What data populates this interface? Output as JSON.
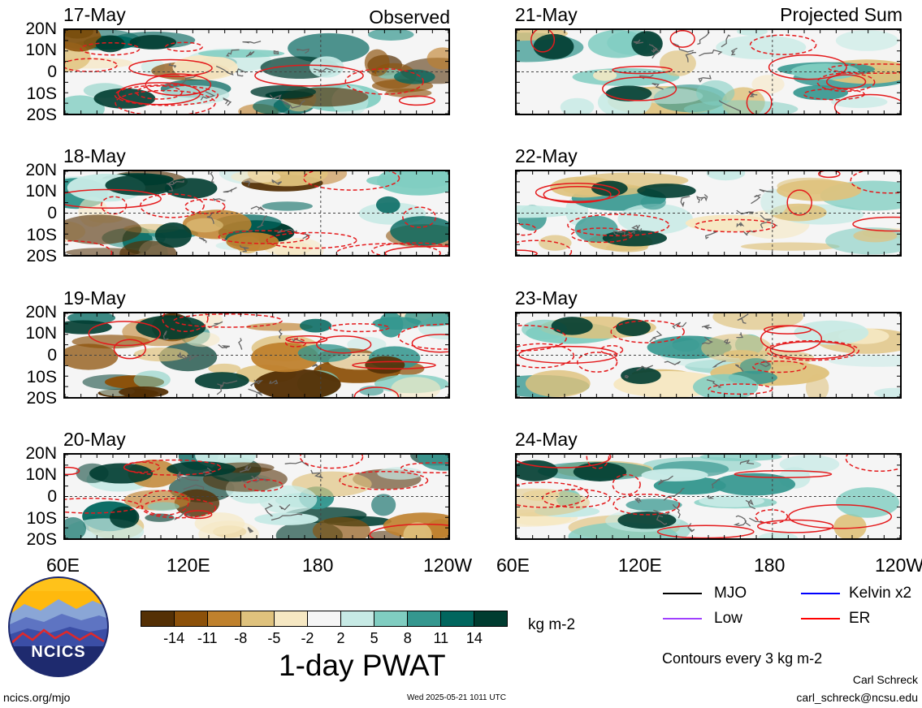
{
  "panels": [
    {
      "date": "17-May",
      "title": "Observed"
    },
    {
      "date": "21-May",
      "title": "Projected Sum"
    },
    {
      "date": "18-May",
      "title": ""
    },
    {
      "date": "22-May",
      "title": ""
    },
    {
      "date": "19-May",
      "title": ""
    },
    {
      "date": "23-May",
      "title": ""
    },
    {
      "date": "20-May",
      "title": ""
    },
    {
      "date": "24-May",
      "title": ""
    }
  ],
  "lat_labels": [
    "20N",
    "10N",
    "0",
    "10S",
    "20S"
  ],
  "lon_labels": [
    "60E",
    "120E",
    "180",
    "120W"
  ],
  "colorbar": {
    "title": "1-day PWAT",
    "units": "kg m-2",
    "tick_labels": [
      "-14",
      "-11",
      "-8",
      "-5",
      "-2",
      "2",
      "5",
      "8",
      "11",
      "14"
    ],
    "colors": [
      "#543005",
      "#8c510a",
      "#bf812d",
      "#dfc27d",
      "#f6e8c3",
      "#f5f5f5",
      "#c7eae5",
      "#80cdc1",
      "#35978f",
      "#01665e",
      "#003c30"
    ]
  },
  "legend": {
    "items": [
      {
        "label": "MJO",
        "color": "#000000"
      },
      {
        "label": "Kelvin x2",
        "color": "#0000ff"
      },
      {
        "label": "Low",
        "color": "#a040ff"
      },
      {
        "label": "ER",
        "color": "#ff0000"
      }
    ],
    "contour_note": "Contours every 3 kg m-2"
  },
  "logo": {
    "text": "NCICS"
  },
  "footer": {
    "url": "ncics.org/mjo",
    "timestamp": "Wed 2025-05-21 1011 UTC",
    "author": "Carl Schreck",
    "email": "carl_schreck@ncsu.edu"
  },
  "chart_data": {
    "type": "heatmap",
    "variable": "1-day PWAT",
    "units": "kg m-2",
    "x_ticks": [
      "60E",
      "120E",
      "180",
      "120W"
    ],
    "y_ticks": [
      "20N",
      "10N",
      "0",
      "10S",
      "20S"
    ],
    "levels": [
      -14,
      -11,
      -8,
      -5,
      -2,
      2,
      5,
      8,
      11,
      14
    ],
    "contour_interval": 3,
    "observed_dates": [
      "17-May",
      "18-May",
      "19-May",
      "20-May"
    ],
    "projected_dates": [
      "21-May",
      "22-May",
      "23-May",
      "24-May"
    ]
  }
}
